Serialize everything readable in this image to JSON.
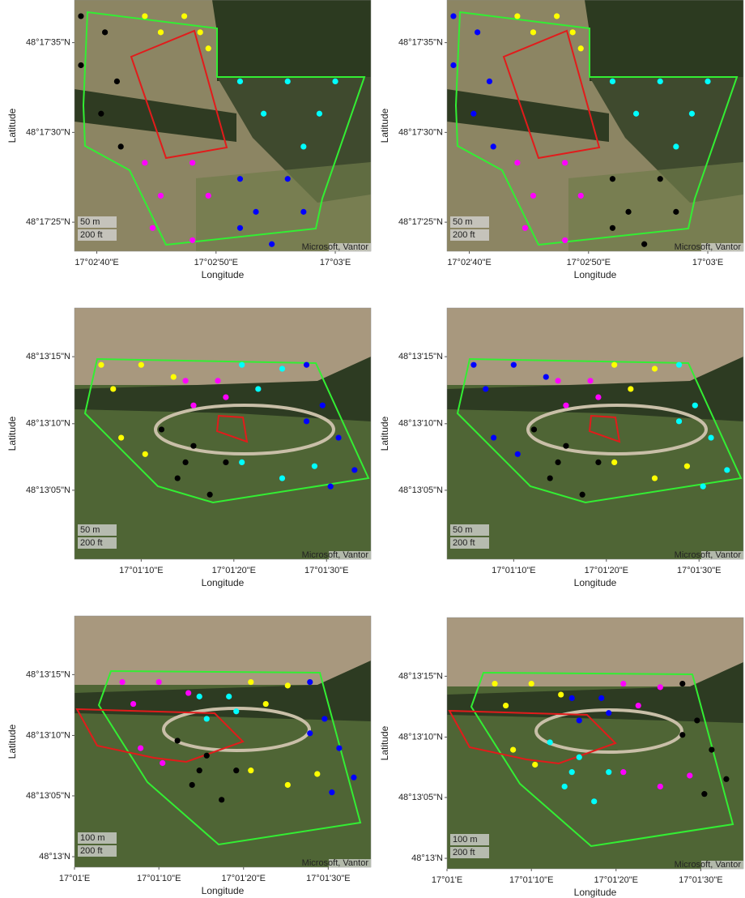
{
  "chart_data": [
    {
      "type": "scatter",
      "xlabel": "Longitude",
      "ylabel": "Latitude",
      "xlim": [
        17.04392,
        17.05083
      ],
      "ylim": [
        48.28983,
        48.29372
      ],
      "xticks": [
        {
          "value": 17.04444,
          "label": "17°02'40\"E"
        },
        {
          "value": 17.04722,
          "label": "17°02'50\"E"
        },
        {
          "value": 17.05,
          "label": "17°03'E"
        }
      ],
      "yticks": [
        {
          "value": 48.29028,
          "label": "48°17'25\"N"
        },
        {
          "value": 48.29167,
          "label": "48°17'30\"N"
        },
        {
          "value": 48.29306,
          "label": "48°17'35\"N"
        }
      ],
      "scale_bar": [
        "50 m",
        "200 ft"
      ],
      "attribution": "Microsoft, Vantor",
      "series": [
        {
          "color": "#000000",
          "x": [
            17.04407,
            17.04463,
            17.04407,
            17.04491,
            17.04454,
            17.045
          ],
          "values": [
            48.29347,
            48.29322,
            48.29271,
            48.29246,
            48.29196,
            48.29145
          ]
        },
        {
          "color": "#ffff00",
          "x": [
            17.04556,
            17.04648,
            17.04593,
            17.04685,
            17.04704
          ],
          "values": [
            48.29347,
            48.29347,
            48.29322,
            48.29322,
            48.29297
          ]
        },
        {
          "color": "#00ffff",
          "x": [
            17.04778,
            17.04889,
            17.05,
            17.04833,
            17.04963,
            17.04926
          ],
          "values": [
            48.29246,
            48.29246,
            48.29246,
            48.29196,
            48.29196,
            48.29145
          ]
        },
        {
          "color": "#ff00ff",
          "x": [
            17.04556,
            17.04667,
            17.04593,
            17.04704,
            17.04574,
            17.04667
          ],
          "values": [
            48.2912,
            48.2912,
            48.29069,
            48.29069,
            48.29019,
            48.29
          ]
        },
        {
          "color": "#0000ff",
          "x": [
            17.04778,
            17.04889,
            17.04815,
            17.04926,
            17.04778,
            17.04852
          ],
          "values": [
            48.29095,
            48.29095,
            48.29044,
            48.29044,
            48.29019,
            48.28994
          ]
        }
      ]
    },
    {
      "type": "scatter",
      "xlabel": "Longitude",
      "ylabel": "Latitude",
      "xlim": [
        17.04392,
        17.05083
      ],
      "ylim": [
        48.28983,
        48.29372
      ],
      "xticks": [
        {
          "value": 17.04444,
          "label": "17°02'40\"E"
        },
        {
          "value": 17.04722,
          "label": "17°02'50\"E"
        },
        {
          "value": 17.05,
          "label": "17°03'E"
        }
      ],
      "yticks": [
        {
          "value": 48.29028,
          "label": "48°17'25\"N"
        },
        {
          "value": 48.29167,
          "label": "48°17'30\"N"
        },
        {
          "value": 48.29306,
          "label": "48°17'35\"N"
        }
      ],
      "scale_bar": [
        "50 m",
        "200 ft"
      ],
      "attribution": "Microsoft, Vantor",
      "series": [
        {
          "color": "#0000ff",
          "x": [
            17.04407,
            17.04463,
            17.04407,
            17.04491,
            17.04454,
            17.045
          ],
          "values": [
            48.29347,
            48.29322,
            48.29271,
            48.29246,
            48.29196,
            48.29145
          ]
        },
        {
          "color": "#ffff00",
          "x": [
            17.04556,
            17.04648,
            17.04593,
            17.04685,
            17.04704
          ],
          "values": [
            48.29347,
            48.29347,
            48.29322,
            48.29322,
            48.29297
          ]
        },
        {
          "color": "#00ffff",
          "x": [
            17.04778,
            17.04889,
            17.05,
            17.04833,
            17.04963,
            17.04926
          ],
          "values": [
            48.29246,
            48.29246,
            48.29246,
            48.29196,
            48.29196,
            48.29145
          ]
        },
        {
          "color": "#ff00ff",
          "x": [
            17.04556,
            17.04667,
            17.04593,
            17.04704,
            17.04574,
            17.04667
          ],
          "values": [
            48.2912,
            48.2912,
            48.29069,
            48.29069,
            48.29019,
            48.29
          ]
        },
        {
          "color": "#000000",
          "x": [
            17.04778,
            17.04889,
            17.04815,
            17.04926,
            17.04778,
            17.04852
          ],
          "values": [
            48.29095,
            48.29095,
            48.29044,
            48.29044,
            48.29019,
            48.28994
          ]
        }
      ]
    },
    {
      "type": "scatter",
      "xlabel": "Longitude",
      "ylabel": "Latitude",
      "xlim": [
        17.01744,
        17.02633
      ],
      "ylim": [
        48.21663,
        48.22184
      ],
      "xticks": [
        {
          "value": 17.01944,
          "label": "17°01'10\"E"
        },
        {
          "value": 17.02222,
          "label": "17°01'20\"E"
        },
        {
          "value": 17.025,
          "label": "17°01'30\"E"
        }
      ],
      "yticks": [
        {
          "value": 48.21806,
          "label": "48°13'05\"N"
        },
        {
          "value": 48.21944,
          "label": "48°13'10\"N"
        },
        {
          "value": 48.22083,
          "label": "48°13'15\"N"
        }
      ],
      "scale_bar": [
        "50 m",
        "200 ft"
      ],
      "attribution": "Microsoft, Vantor",
      "series": [
        {
          "color": "#ffff00",
          "x": [
            17.01824,
            17.01944,
            17.02041,
            17.0186,
            17.01884,
            17.01956
          ],
          "values": [
            48.22066,
            48.22066,
            48.22041,
            48.22016,
            48.21915,
            48.21881
          ]
        },
        {
          "color": "#ff00ff",
          "x": [
            17.02077,
            17.02174,
            17.02101,
            17.02198
          ],
          "values": [
            48.22033,
            48.22033,
            48.21982,
            48.21999
          ]
        },
        {
          "color": "#00ffff",
          "x": [
            17.02246,
            17.02367,
            17.02295,
            17.02246,
            17.02367,
            17.02464
          ],
          "values": [
            48.22066,
            48.22058,
            48.22016,
            48.21864,
            48.21831,
            48.21856
          ]
        },
        {
          "color": "#0000ff",
          "x": [
            17.0244,
            17.02488,
            17.02536,
            17.02584,
            17.02512,
            17.0244
          ],
          "values": [
            48.22066,
            48.21982,
            48.21915,
            48.21848,
            48.21814,
            48.21949
          ]
        },
        {
          "color": "#000000",
          "x": [
            17.02005,
            17.02101,
            17.02198,
            17.02053,
            17.0215,
            17.02077
          ],
          "values": [
            48.21932,
            48.21898,
            48.21864,
            48.21831,
            48.21797,
            48.21864
          ]
        }
      ]
    },
    {
      "type": "scatter",
      "xlabel": "Longitude",
      "ylabel": "Latitude",
      "xlim": [
        17.01744,
        17.02633
      ],
      "ylim": [
        48.21663,
        48.22184
      ],
      "xticks": [
        {
          "value": 17.01944,
          "label": "17°01'10\"E"
        },
        {
          "value": 17.02222,
          "label": "17°01'20\"E"
        },
        {
          "value": 17.025,
          "label": "17°01'30\"E"
        }
      ],
      "yticks": [
        {
          "value": 48.21806,
          "label": "48°13'05\"N"
        },
        {
          "value": 48.21944,
          "label": "48°13'10\"N"
        },
        {
          "value": 48.22083,
          "label": "48°13'15\"N"
        }
      ],
      "scale_bar": [
        "50 m",
        "200 ft"
      ],
      "attribution": "Microsoft, Vantor",
      "series": [
        {
          "color": "#0000ff",
          "x": [
            17.01824,
            17.01944,
            17.02041,
            17.0186,
            17.01884,
            17.01956
          ],
          "values": [
            48.22066,
            48.22066,
            48.22041,
            48.22016,
            48.21915,
            48.21881
          ]
        },
        {
          "color": "#ff00ff",
          "x": [
            17.02077,
            17.02174,
            17.02101,
            17.02198
          ],
          "values": [
            48.22033,
            48.22033,
            48.21982,
            48.21999
          ]
        },
        {
          "color": "#ffff00",
          "x": [
            17.02246,
            17.02367,
            17.02295,
            17.02246,
            17.02367,
            17.02464
          ],
          "values": [
            48.22066,
            48.22058,
            48.22016,
            48.21864,
            48.21831,
            48.21856
          ]
        },
        {
          "color": "#00ffff",
          "x": [
            17.0244,
            17.02488,
            17.02536,
            17.02584,
            17.02512,
            17.0244
          ],
          "values": [
            48.22066,
            48.21982,
            48.21915,
            48.21848,
            48.21814,
            48.21949
          ]
        },
        {
          "color": "#000000",
          "x": [
            17.02005,
            17.02101,
            17.02198,
            17.02053,
            17.0215,
            17.02077
          ],
          "values": [
            48.21932,
            48.21898,
            48.21864,
            48.21831,
            48.21797,
            48.21864
          ]
        }
      ]
    },
    {
      "type": "scatter",
      "xlabel": "Longitude",
      "ylabel": "Latitude",
      "xlim": [
        17.01667,
        17.0264
      ],
      "ylim": [
        48.21643,
        48.22217
      ],
      "xticks": [
        {
          "value": 17.01667,
          "label": "17°01'E"
        },
        {
          "value": 17.01944,
          "label": "17°01'10\"E"
        },
        {
          "value": 17.02222,
          "label": "17°01'20\"E"
        },
        {
          "value": 17.025,
          "label": "17°01'30\"E"
        }
      ],
      "yticks": [
        {
          "value": 48.21667,
          "label": "48°13'N"
        },
        {
          "value": 48.21806,
          "label": "48°13'05\"N"
        },
        {
          "value": 48.21944,
          "label": "48°13'10\"N"
        },
        {
          "value": 48.22083,
          "label": "48°13'15\"N"
        }
      ],
      "scale_bar": [
        "100 m",
        "200 ft"
      ],
      "attribution": "Microsoft, Vantor",
      "series": [
        {
          "color": "#ff00ff",
          "x": [
            17.01824,
            17.01944,
            17.02041,
            17.0186,
            17.01884,
            17.01956
          ],
          "values": [
            48.22066,
            48.22066,
            48.22041,
            48.22016,
            48.21915,
            48.21881
          ]
        },
        {
          "color": "#00ffff",
          "x": [
            17.02077,
            17.02174,
            17.02101,
            17.02198
          ],
          "values": [
            48.22033,
            48.22033,
            48.21982,
            48.21999
          ]
        },
        {
          "color": "#ffff00",
          "x": [
            17.02246,
            17.02367,
            17.02295,
            17.02246,
            17.02367,
            17.02464
          ],
          "values": [
            48.22066,
            48.22058,
            48.22016,
            48.21864,
            48.21831,
            48.21856
          ]
        },
        {
          "color": "#0000ff",
          "x": [
            17.0244,
            17.02488,
            17.02536,
            17.02584,
            17.02512,
            17.0244
          ],
          "values": [
            48.22066,
            48.21982,
            48.21915,
            48.21848,
            48.21814,
            48.21949
          ]
        },
        {
          "color": "#000000",
          "x": [
            17.02005,
            17.02101,
            17.02198,
            17.02053,
            17.0215,
            17.02077
          ],
          "values": [
            48.21932,
            48.21898,
            48.21864,
            48.21831,
            48.21797,
            48.21864
          ]
        }
      ]
    },
    {
      "type": "scatter",
      "xlabel": "Longitude",
      "ylabel": "Latitude",
      "xlim": [
        17.01667,
        17.0264
      ],
      "ylim": [
        48.21643,
        48.22217
      ],
      "xticks": [
        {
          "value": 17.01667,
          "label": "17°01'E"
        },
        {
          "value": 17.01944,
          "label": "17°01'10\"E"
        },
        {
          "value": 17.02222,
          "label": "17°01'20\"E"
        },
        {
          "value": 17.025,
          "label": "17°01'30\"E"
        }
      ],
      "yticks": [
        {
          "value": 48.21667,
          "label": "48°13'N"
        },
        {
          "value": 48.21806,
          "label": "48°13'05\"N"
        },
        {
          "value": 48.21944,
          "label": "48°13'10\"N"
        },
        {
          "value": 48.22083,
          "label": "48°13'15\"N"
        }
      ],
      "scale_bar": [
        "100 m",
        "200 ft"
      ],
      "attribution": "Microsoft, Vantor",
      "series": [
        {
          "color": "#ffff00",
          "x": [
            17.01824,
            17.01944,
            17.02041,
            17.0186,
            17.01884,
            17.01956
          ],
          "values": [
            48.22066,
            48.22066,
            48.22041,
            48.22016,
            48.21915,
            48.21881
          ]
        },
        {
          "color": "#0000ff",
          "x": [
            17.02077,
            17.02174,
            17.02101,
            17.02198
          ],
          "values": [
            48.22033,
            48.22033,
            48.21982,
            48.21999
          ]
        },
        {
          "color": "#ff00ff",
          "x": [
            17.02246,
            17.02367,
            17.02295,
            17.02246,
            17.02367,
            17.02464
          ],
          "values": [
            48.22066,
            48.22058,
            48.22016,
            48.21864,
            48.21831,
            48.21856
          ]
        },
        {
          "color": "#000000",
          "x": [
            17.0244,
            17.02488,
            17.02536,
            17.02584,
            17.02512,
            17.0244
          ],
          "values": [
            48.22066,
            48.21982,
            48.21915,
            48.21848,
            48.21814,
            48.21949
          ]
        },
        {
          "color": "#00ffff",
          "x": [
            17.02005,
            17.02101,
            17.02198,
            17.02053,
            17.0215,
            17.02077
          ],
          "values": [
            48.21932,
            48.21898,
            48.21864,
            48.21831,
            48.21797,
            48.21864
          ]
        }
      ]
    }
  ]
}
